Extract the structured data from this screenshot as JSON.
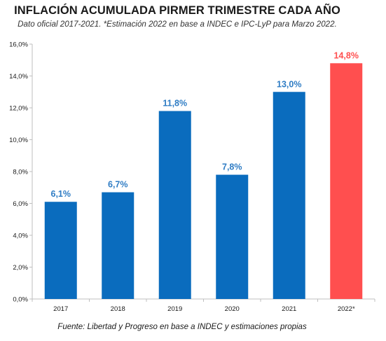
{
  "title": "INFLACIÓN ACUMULADA PIRMER TRIMESTRE CADA AÑO",
  "subtitle": "Dato oficial 2017-2021. *Estimación 2022 en base a INDEC e IPC-LyP para Marzo 2022.",
  "source": "Fuente: Libertad y Progreso en base a INDEC y estimaciones propias",
  "chart_data": {
    "type": "bar",
    "categories": [
      "2017",
      "2018",
      "2019",
      "2020",
      "2021",
      "2022*"
    ],
    "values": [
      6.1,
      6.7,
      11.8,
      7.8,
      13.0,
      14.8
    ],
    "data_labels": [
      "6,1%",
      "6,7%",
      "11,8%",
      "7,8%",
      "13,0%",
      "14,8%"
    ],
    "ylim": [
      0,
      16
    ],
    "yticks": [
      0,
      2,
      4,
      6,
      8,
      10,
      12,
      14,
      16
    ],
    "ytick_labels": [
      "0,0%",
      "2,0%",
      "4,0%",
      "6,0%",
      "8,0%",
      "10,0%",
      "12,0%",
      "14,0%",
      "16,0%"
    ],
    "bar_colors": [
      "#0a6cbe",
      "#0a6cbe",
      "#0a6cbe",
      "#0a6cbe",
      "#0a6cbe",
      "#ff4f4f"
    ],
    "label_colors": [
      "#2e7cc4",
      "#2e7cc4",
      "#2e7cc4",
      "#2e7cc4",
      "#2e7cc4",
      "#ff4f4f"
    ],
    "grid": false,
    "legend": "none"
  }
}
